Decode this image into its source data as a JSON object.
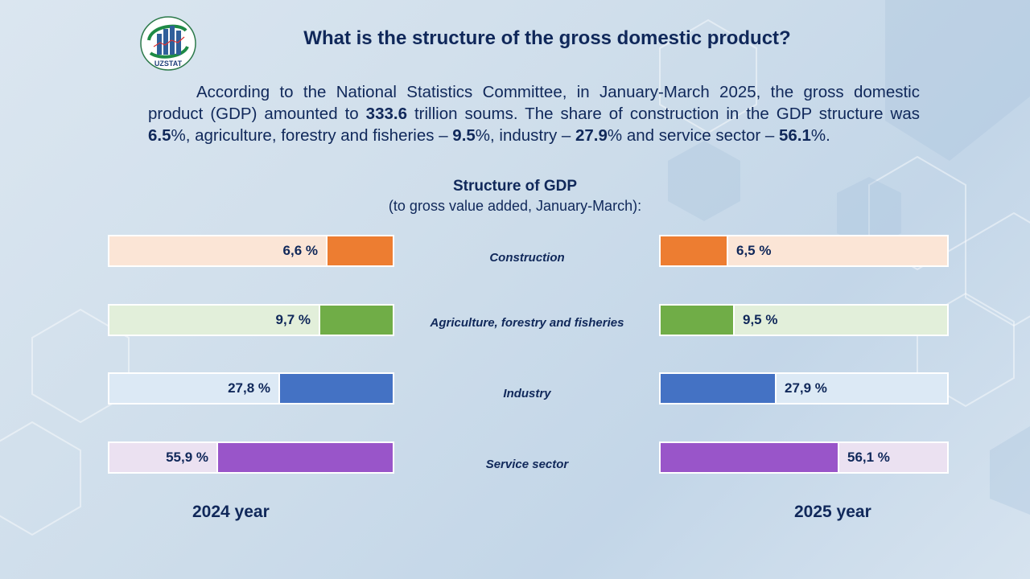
{
  "header": {
    "logo_text": "UZSTAT",
    "title": "What is the structure of the gross domestic product?"
  },
  "paragraph": {
    "p1": "According to the National Statistics Committee, in January-March 2025, the gross domestic product (GDP) amounted to ",
    "gdp_value": "333.6",
    "p2": " trillion soums. The share of construction in the GDP structure was ",
    "v_construction": "6.5",
    "p3": "%, agriculture, forestry and fisheries – ",
    "v_agriculture": "9.5",
    "p4": "%, industry – ",
    "v_industry": "27.9",
    "p5": "% and service sector – ",
    "v_service": "56.1",
    "p6": "%."
  },
  "chart_data": {
    "type": "bar",
    "title": "Structure of GDP",
    "subtitle": "(to gross value added, January-March):",
    "categories": [
      "Construction",
      "Agriculture, forestry and fisheries",
      "Industry",
      "Service sector"
    ],
    "series": [
      {
        "name": "2024 year",
        "values": [
          6.6,
          9.7,
          27.8,
          55.9
        ],
        "labels": [
          "6,6 %",
          "9,7 %",
          "27,8 %",
          "55,9 %"
        ],
        "direction": "right-to-left"
      },
      {
        "name": "2025 year",
        "values": [
          6.5,
          9.5,
          27.9,
          56.1
        ],
        "labels": [
          "6,5 %",
          "9,5 %",
          "27,9 %",
          "56,1 %"
        ],
        "direction": "left-to-right"
      }
    ],
    "unit": "%",
    "xlim": [
      0,
      100
    ],
    "colors": [
      "#ed7d31",
      "#70ad47",
      "#4472c4",
      "#9955c9"
    ],
    "track_colors": [
      "#fbe5d6",
      "#e2efda",
      "#dce9f5",
      "#ebe1f1"
    ]
  }
}
